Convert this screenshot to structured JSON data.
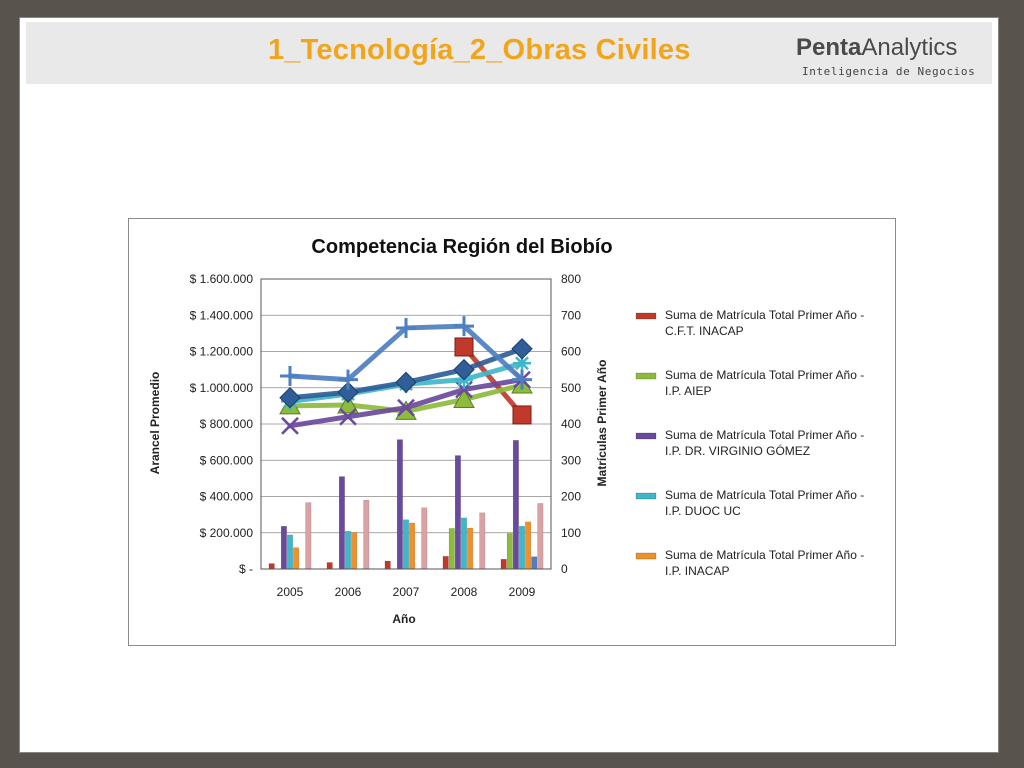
{
  "slide": {
    "title": "1_Tecnología_2_Obras Civiles",
    "logo": {
      "brand_bold": "Penta",
      "brand_light": "Analytics",
      "tagline": "Inteligencia de Negocios"
    }
  },
  "chart_data": {
    "type": "bar",
    "title": "Competencia Región del Biobío",
    "xlabel": "Año",
    "ylabel_left": "Arancel Promedio",
    "ylabel_right": "Matrículas Primer Año",
    "categories": [
      "2005",
      "2006",
      "2007",
      "2008",
      "2009"
    ],
    "ylim_left": [
      0,
      1600000
    ],
    "ylim_right": [
      0,
      800
    ],
    "yticks_left": [
      "$ -",
      "$ 200.000",
      "$ 400.000",
      "$ 600.000",
      "$ 800.000",
      "$ 1.000.000",
      "$ 1.200.000",
      "$ 1.400.000",
      "$ 1.600.000"
    ],
    "yticks_right": [
      "0",
      "100",
      "200",
      "300",
      "400",
      "500",
      "600",
      "700",
      "800"
    ],
    "grid": true,
    "legend_position": "right",
    "bar_series": [
      {
        "name": "Suma de Matrícula Total Primer Año - C.F.T. INACAP",
        "color": "#c0392b",
        "values": [
          15,
          18,
          22,
          35,
          27
        ]
      },
      {
        "name": "Suma de Matrícula Total Primer Año - I.P. AIEP",
        "color": "#8dbb3c",
        "values": [
          0,
          0,
          0,
          112,
          98
        ]
      },
      {
        "name": "Suma de Matrícula Total Primer Año - I.P. DR. VIRGINIO GÓMEZ",
        "color": "#6a4a9c",
        "values": [
          118,
          255,
          357,
          313,
          355
        ]
      },
      {
        "name": "Suma de Matrícula Total Primer Año - I.P. DUOC UC",
        "color": "#3fb7c9",
        "values": [
          94,
          104,
          136,
          141,
          118
        ]
      },
      {
        "name": "Suma de Matrícula Total Primer Año - I.P. INACAP",
        "color": "#f0902a",
        "values": [
          59,
          101,
          127,
          113,
          130
        ]
      },
      {
        "name": "",
        "color": "#4e7fc0",
        "values": [
          0,
          0,
          0,
          0,
          34
        ]
      },
      {
        "name": "",
        "color": "#d9a3a6",
        "values": [
          183,
          190,
          169,
          155,
          181
        ]
      }
    ],
    "line_series": [
      {
        "name": "",
        "color": "#c0392b",
        "marker": "square",
        "values": [
          null,
          null,
          null,
          1225000,
          850000
        ]
      },
      {
        "name": "",
        "color": "#8dbb3c",
        "marker": "triangle",
        "values": [
          900000,
          905000,
          870000,
          935000,
          1015000
        ]
      },
      {
        "name": "",
        "color": "#6a4a9c",
        "marker": "x",
        "values": [
          790000,
          840000,
          890000,
          990000,
          1045000
        ]
      },
      {
        "name": "",
        "color": "#3fb7c9",
        "marker": "star",
        "values": [
          925000,
          965000,
          1020000,
          1045000,
          1135000
        ]
      },
      {
        "name": "",
        "color": "#2f5e98",
        "marker": "diamond",
        "values": [
          945000,
          975000,
          1030000,
          1100000,
          1215000
        ]
      },
      {
        "name": "",
        "color": "#4e7fc0",
        "marker": "plus",
        "values": [
          1065000,
          1045000,
          1330000,
          1340000,
          1045000
        ]
      }
    ]
  }
}
